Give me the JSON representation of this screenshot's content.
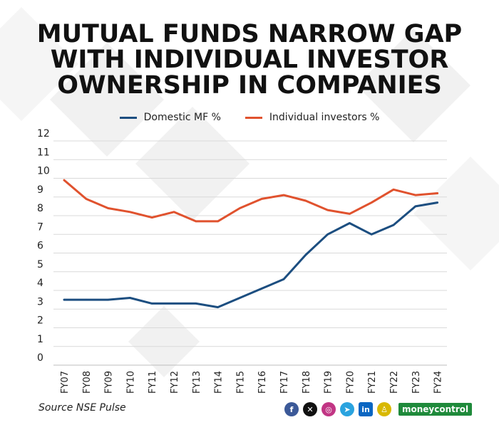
{
  "title_lines": [
    "MUTUAL FUNDS NARROW GAP",
    "WITH INDIVIDUAL INVESTOR",
    "OWNERSHIP IN COMPANIES"
  ],
  "source": "Source NSE Pulse",
  "brand": "moneycontrol",
  "social_icons": [
    "facebook-icon",
    "x-icon",
    "instagram-icon",
    "telegram-icon",
    "linkedin-icon",
    "snapchat-icon"
  ],
  "colors": {
    "domestic_mf": "#1c4e80",
    "individual": "#e0522e",
    "grid": "#d9d9d9",
    "axis_text": "#222222"
  },
  "chart_data": {
    "type": "line",
    "title": "MUTUAL FUNDS NARROW GAP WITH INDIVIDUAL INVESTOR OWNERSHIP IN COMPANIES",
    "xlabel": "",
    "ylabel": "",
    "ylim": [
      0,
      12
    ],
    "yticks": [
      0,
      1,
      2,
      3,
      4,
      5,
      6,
      7,
      8,
      9,
      10,
      11,
      12
    ],
    "grid": true,
    "legend_position": "top-center",
    "categories": [
      "FY07",
      "FY08",
      "FY09",
      "FY10",
      "FY11",
      "FY12",
      "FY13",
      "FY14",
      "FY15",
      "FY16",
      "FY17",
      "FY18",
      "FY19",
      "FY20",
      "FY21",
      "FY22",
      "FY23",
      "FY24"
    ],
    "series": [
      {
        "name": "Domestic MF %",
        "color": "#1c4e80",
        "values": [
          3.5,
          3.5,
          3.5,
          3.6,
          3.3,
          3.3,
          3.3,
          3.1,
          3.6,
          4.1,
          4.6,
          5.9,
          7.0,
          7.6,
          7.0,
          7.5,
          8.5,
          8.7
        ]
      },
      {
        "name": "Individual investors %",
        "color": "#e0522e",
        "values": [
          9.9,
          8.9,
          8.4,
          8.2,
          7.9,
          8.2,
          7.7,
          7.7,
          8.4,
          8.9,
          9.1,
          8.8,
          8.3,
          8.1,
          8.7,
          9.4,
          9.1,
          9.2
        ]
      }
    ]
  }
}
